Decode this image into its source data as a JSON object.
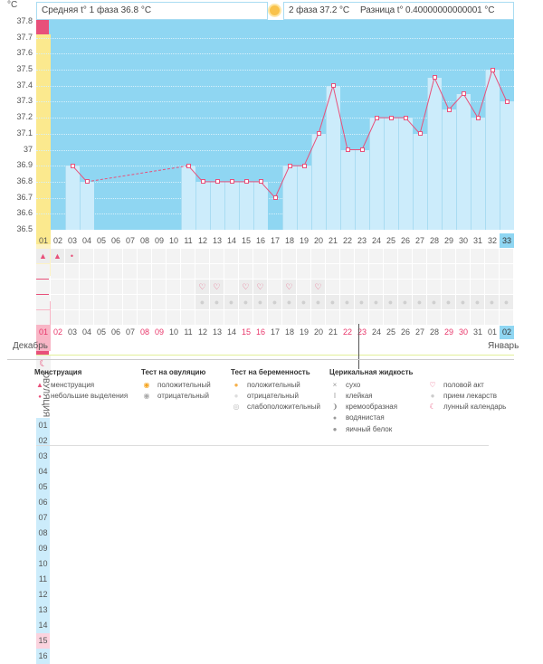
{
  "unit": "°C",
  "header": {
    "phase1": "Средняя t° 1 фаза 36.8 °C",
    "phase2": "2 фаза 37.2 °C",
    "diff": "Разница t° 0.40000000000001 °C"
  },
  "ovulation_label": "ОВУЛЯЦИЯ",
  "colors": {
    "bg": "#8fd6f2",
    "bar": "#ccecfb",
    "line": "#e8507a",
    "ovulation": "#fbe98e",
    "highlight": "#f8b6c6",
    "cover": "#e3f09a"
  },
  "chart_data": {
    "type": "line",
    "ylim": [
      36.5,
      37.8
    ],
    "yticks": [
      "37.8",
      "37.7",
      "37.6",
      "37.5",
      "37.4",
      "37.3",
      "37.2",
      "37.1",
      "37",
      "36.9",
      "36.8",
      "36.7",
      "36.6",
      "36.5"
    ],
    "cycle_days": [
      "01",
      "02",
      "03",
      "04",
      "05",
      "06",
      "07",
      "08",
      "09",
      "10",
      "11",
      "12",
      "13",
      "14",
      "15",
      "16",
      "17",
      "18",
      "19",
      "20",
      "21",
      "22",
      "23",
      "24",
      "25",
      "26",
      "27",
      "28",
      "29",
      "30",
      "31",
      "32",
      "33"
    ],
    "temps": [
      null,
      null,
      36.9,
      36.8,
      null,
      null,
      null,
      null,
      null,
      null,
      36.9,
      36.8,
      36.8,
      36.8,
      36.8,
      36.8,
      36.7,
      36.9,
      36.9,
      37.1,
      37.4,
      37.0,
      37.0,
      37.2,
      37.2,
      37.2,
      37.1,
      37.45,
      37.25,
      37.35,
      37.2,
      37.5,
      37.3
    ],
    "cover_line": 36.8,
    "ovulation_day": 17,
    "luteal_days": [
      "01",
      "02",
      "03",
      "04",
      "05",
      "06",
      "07",
      "08",
      "09",
      "10",
      "11",
      "12",
      "13",
      "14",
      "15",
      "16"
    ],
    "highlight_luteal_day": 15
  },
  "dates": [
    "01",
    "02",
    "03",
    "04",
    "05",
    "06",
    "07",
    "08",
    "09",
    "10",
    "11",
    "12",
    "13",
    "14",
    "15",
    "16",
    "17",
    "18",
    "19",
    "20",
    "21",
    "22",
    "23",
    "24",
    "25",
    "26",
    "27",
    "28",
    "29",
    "30",
    "31",
    "01",
    "02"
  ],
  "weekend_idx": [
    0,
    1,
    7,
    8,
    14,
    15,
    21,
    22,
    28,
    29
  ],
  "months": {
    "dec": "Декабрь",
    "jan": "Январь"
  },
  "menstruation": {
    "1": "heavy",
    "2": "heavy",
    "3": "light"
  },
  "intercourse_days": [
    12,
    13,
    15,
    16,
    18,
    20
  ],
  "medication_from": 12,
  "legend": {
    "menstruation": {
      "title": "Менструация",
      "items": [
        "менструация",
        "небольшие выделения"
      ]
    },
    "ovulation_test": {
      "title": "Тест на овуляцию",
      "items": [
        "положительный",
        "отрицательный"
      ]
    },
    "pregnancy_test": {
      "title": "Тест на беременность",
      "items": [
        "положительный",
        "отрицательный",
        "слабоположительный"
      ]
    },
    "cervical": {
      "title": "Церикальная жидкость",
      "items": [
        "сухо",
        "клейкая",
        "кремообразная",
        "водянистая",
        "яичный белок"
      ]
    },
    "other": {
      "items": [
        "половой акт",
        "прием лекарств",
        "лунный календарь"
      ]
    }
  }
}
